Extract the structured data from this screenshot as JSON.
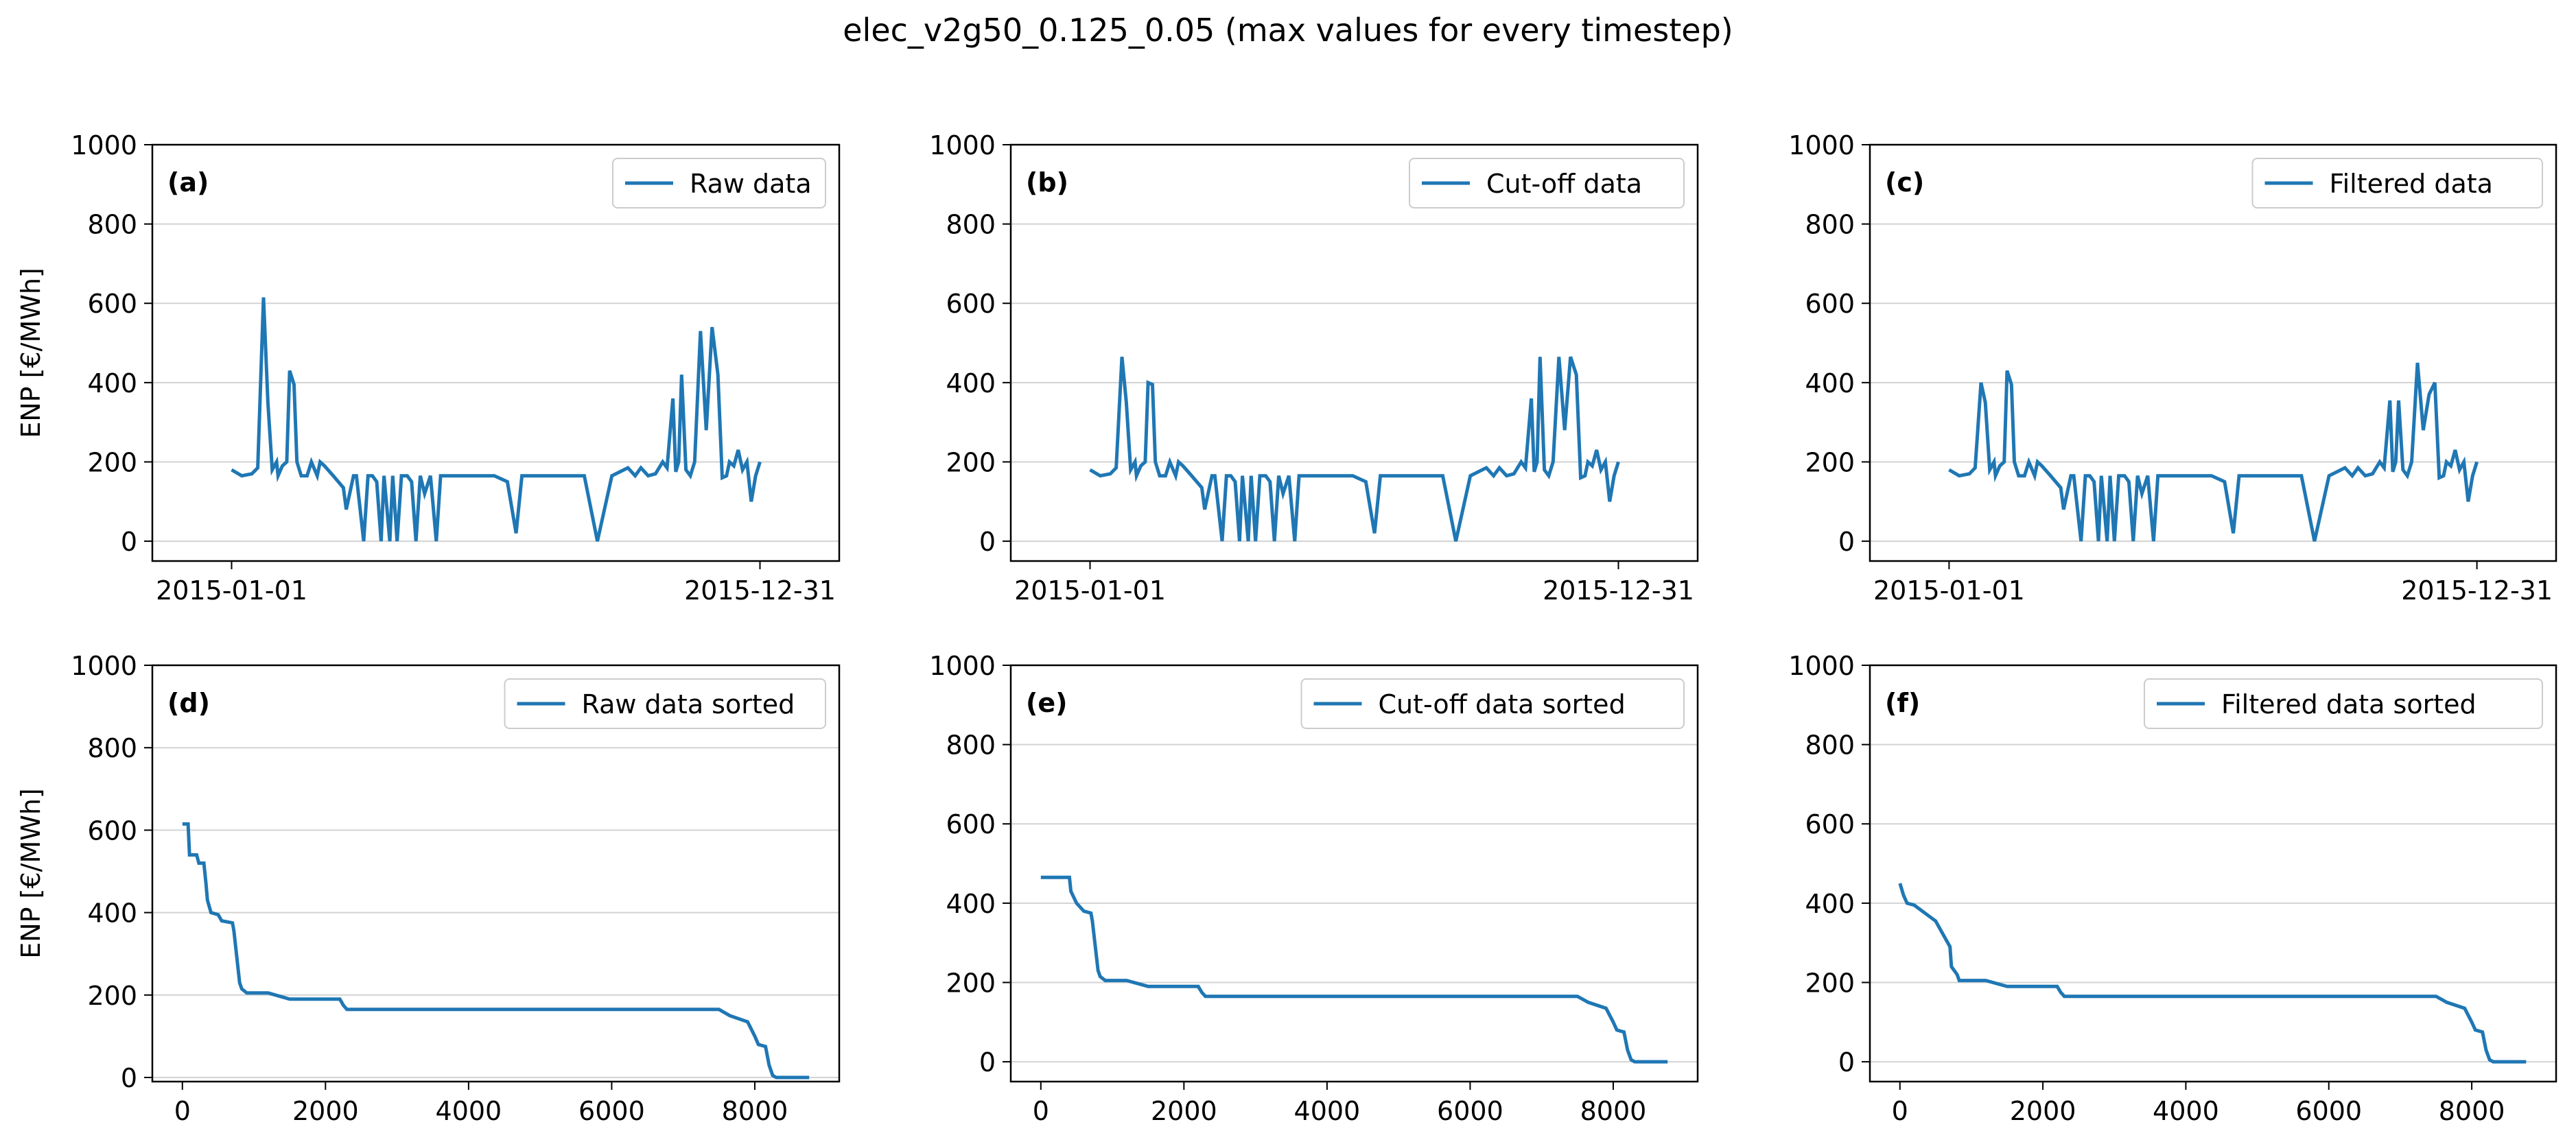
{
  "figure": {
    "suptitle": "elec_v2g50_0.125_0.05 (max values for every timestep)",
    "line_color": "#1f77b4"
  },
  "chart_data": [
    {
      "panel": "(a)",
      "type": "line",
      "legend": "Raw data",
      "legend_placement": "top-right",
      "ylabel": "ENP [€/MWh]",
      "xlabel": "",
      "x_axis": "date",
      "xticks": [
        "2015-01-01",
        "2015-12-31"
      ],
      "yticks": [
        0,
        200,
        400,
        600,
        800,
        1000
      ],
      "ylim": [
        -50,
        1000
      ],
      "grid": "horizontal",
      "x": [
        "2015-01-01",
        "2015-01-08",
        "2015-01-15",
        "2015-01-19",
        "2015-01-23",
        "2015-01-26",
        "2015-01-29",
        "2015-02-01",
        "2015-02-02",
        "2015-02-05",
        "2015-02-08",
        "2015-02-10",
        "2015-02-13",
        "2015-02-15",
        "2015-02-18",
        "2015-02-22",
        "2015-02-25",
        "2015-03-01",
        "2015-03-03",
        "2015-03-06",
        "2015-03-12",
        "2015-03-19",
        "2015-03-21",
        "2015-03-26",
        "2015-03-28",
        "2015-04-02",
        "2015-04-05",
        "2015-04-08",
        "2015-04-11",
        "2015-04-14",
        "2015-04-16",
        "2015-04-20",
        "2015-04-22",
        "2015-04-25",
        "2015-04-28",
        "2015-05-02",
        "2015-05-05",
        "2015-05-08",
        "2015-05-11",
        "2015-05-14",
        "2015-05-18",
        "2015-05-22",
        "2015-05-25",
        "2015-05-29",
        "2015-06-02",
        "2015-06-10",
        "2015-06-20",
        "2015-07-01",
        "2015-07-10",
        "2015-07-16",
        "2015-07-20",
        "2015-08-01",
        "2015-08-15",
        "2015-09-01",
        "2015-09-10",
        "2015-09-20",
        "2015-10-01",
        "2015-10-06",
        "2015-10-10",
        "2015-10-15",
        "2015-10-20",
        "2015-10-25",
        "2015-10-28",
        "2015-11-01",
        "2015-11-03",
        "2015-11-05",
        "2015-11-07",
        "2015-11-10",
        "2015-11-13",
        "2015-11-16",
        "2015-11-20",
        "2015-11-24",
        "2015-11-28",
        "2015-12-02",
        "2015-12-05",
        "2015-12-08",
        "2015-12-10",
        "2015-12-13",
        "2015-12-16",
        "2015-12-19",
        "2015-12-22",
        "2015-12-25",
        "2015-12-28",
        "2015-12-31"
      ],
      "y": [
        180,
        165,
        170,
        185,
        615,
        350,
        180,
        200,
        165,
        190,
        200,
        430,
        395,
        200,
        165,
        165,
        200,
        165,
        200,
        190,
        165,
        135,
        80,
        165,
        165,
        0,
        165,
        165,
        150,
        0,
        165,
        0,
        165,
        0,
        165,
        165,
        150,
        0,
        165,
        120,
        165,
        0,
        165,
        165,
        165,
        165,
        165,
        165,
        150,
        20,
        165,
        165,
        165,
        165,
        0,
        165,
        185,
        165,
        185,
        165,
        170,
        200,
        185,
        360,
        175,
        200,
        420,
        180,
        165,
        200,
        530,
        280,
        540,
        420,
        160,
        165,
        200,
        190,
        230,
        180,
        200,
        100,
        165,
        200
      ]
    },
    {
      "panel": "(b)",
      "type": "line",
      "legend": "Cut-off data",
      "legend_placement": "top-right",
      "ylabel": "",
      "xlabel": "",
      "x_axis": "date",
      "xticks": [
        "2015-01-01",
        "2015-12-31"
      ],
      "yticks": [
        0,
        200,
        400,
        600,
        800,
        1000
      ],
      "ylim": [
        -50,
        1000
      ],
      "grid": "horizontal",
      "x": [
        "2015-01-01",
        "2015-01-08",
        "2015-01-15",
        "2015-01-19",
        "2015-01-23",
        "2015-01-26",
        "2015-01-29",
        "2015-02-01",
        "2015-02-02",
        "2015-02-05",
        "2015-02-08",
        "2015-02-10",
        "2015-02-13",
        "2015-02-15",
        "2015-02-18",
        "2015-02-22",
        "2015-02-25",
        "2015-03-01",
        "2015-03-03",
        "2015-03-06",
        "2015-03-12",
        "2015-03-19",
        "2015-03-21",
        "2015-03-26",
        "2015-03-28",
        "2015-04-02",
        "2015-04-05",
        "2015-04-08",
        "2015-04-11",
        "2015-04-14",
        "2015-04-16",
        "2015-04-20",
        "2015-04-22",
        "2015-04-25",
        "2015-04-28",
        "2015-05-02",
        "2015-05-05",
        "2015-05-08",
        "2015-05-11",
        "2015-05-14",
        "2015-05-18",
        "2015-05-22",
        "2015-05-25",
        "2015-05-29",
        "2015-06-02",
        "2015-06-10",
        "2015-06-20",
        "2015-07-01",
        "2015-07-10",
        "2015-07-16",
        "2015-07-20",
        "2015-08-01",
        "2015-08-15",
        "2015-09-01",
        "2015-09-10",
        "2015-09-20",
        "2015-10-01",
        "2015-10-06",
        "2015-10-10",
        "2015-10-15",
        "2015-10-20",
        "2015-10-25",
        "2015-10-28",
        "2015-11-01",
        "2015-11-03",
        "2015-11-05",
        "2015-11-07",
        "2015-11-10",
        "2015-11-13",
        "2015-11-16",
        "2015-11-20",
        "2015-11-24",
        "2015-11-28",
        "2015-12-02",
        "2015-12-05",
        "2015-12-08",
        "2015-12-10",
        "2015-12-13",
        "2015-12-16",
        "2015-12-19",
        "2015-12-22",
        "2015-12-25",
        "2015-12-28",
        "2015-12-31"
      ],
      "y": [
        180,
        165,
        170,
        185,
        465,
        350,
        180,
        200,
        165,
        190,
        200,
        400,
        395,
        200,
        165,
        165,
        200,
        165,
        200,
        190,
        165,
        135,
        80,
        165,
        165,
        0,
        165,
        165,
        150,
        0,
        165,
        0,
        165,
        0,
        165,
        165,
        150,
        0,
        165,
        120,
        165,
        0,
        165,
        165,
        165,
        165,
        165,
        165,
        150,
        20,
        165,
        165,
        165,
        165,
        0,
        165,
        185,
        165,
        185,
        165,
        170,
        200,
        185,
        360,
        175,
        200,
        465,
        180,
        165,
        200,
        465,
        280,
        465,
        420,
        160,
        165,
        200,
        190,
        230,
        180,
        200,
        100,
        165,
        200
      ]
    },
    {
      "panel": "(c)",
      "type": "line",
      "legend": "Filtered data",
      "legend_placement": "top-right",
      "ylabel": "",
      "xlabel": "",
      "x_axis": "date",
      "xticks": [
        "2015-01-01",
        "2015-12-31"
      ],
      "yticks": [
        0,
        200,
        400,
        600,
        800,
        1000
      ],
      "ylim": [
        -50,
        1000
      ],
      "grid": "horizontal",
      "x": [
        "2015-01-01",
        "2015-01-08",
        "2015-01-15",
        "2015-01-19",
        "2015-01-23",
        "2015-01-26",
        "2015-01-29",
        "2015-02-01",
        "2015-02-02",
        "2015-02-05",
        "2015-02-08",
        "2015-02-10",
        "2015-02-13",
        "2015-02-15",
        "2015-02-18",
        "2015-02-22",
        "2015-02-25",
        "2015-03-01",
        "2015-03-03",
        "2015-03-06",
        "2015-03-12",
        "2015-03-19",
        "2015-03-21",
        "2015-03-26",
        "2015-03-28",
        "2015-04-02",
        "2015-04-05",
        "2015-04-08",
        "2015-04-11",
        "2015-04-14",
        "2015-04-16",
        "2015-04-20",
        "2015-04-22",
        "2015-04-25",
        "2015-04-28",
        "2015-05-02",
        "2015-05-05",
        "2015-05-08",
        "2015-05-11",
        "2015-05-14",
        "2015-05-18",
        "2015-05-22",
        "2015-05-25",
        "2015-05-29",
        "2015-06-02",
        "2015-06-10",
        "2015-06-20",
        "2015-07-01",
        "2015-07-10",
        "2015-07-16",
        "2015-07-20",
        "2015-08-01",
        "2015-08-15",
        "2015-09-01",
        "2015-09-10",
        "2015-09-20",
        "2015-10-01",
        "2015-10-06",
        "2015-10-10",
        "2015-10-15",
        "2015-10-20",
        "2015-10-25",
        "2015-10-28",
        "2015-11-01",
        "2015-11-03",
        "2015-11-05",
        "2015-11-07",
        "2015-11-10",
        "2015-11-13",
        "2015-11-16",
        "2015-11-20",
        "2015-11-24",
        "2015-11-28",
        "2015-12-02",
        "2015-12-05",
        "2015-12-08",
        "2015-12-10",
        "2015-12-13",
        "2015-12-16",
        "2015-12-19",
        "2015-12-22",
        "2015-12-25",
        "2015-12-28",
        "2015-12-31"
      ],
      "y": [
        180,
        165,
        170,
        185,
        400,
        350,
        180,
        200,
        165,
        190,
        200,
        430,
        395,
        200,
        165,
        165,
        200,
        165,
        200,
        190,
        165,
        135,
        80,
        165,
        165,
        0,
        165,
        165,
        150,
        0,
        165,
        0,
        165,
        0,
        165,
        165,
        150,
        0,
        165,
        120,
        165,
        0,
        165,
        165,
        165,
        165,
        165,
        165,
        150,
        20,
        165,
        165,
        165,
        165,
        0,
        165,
        185,
        165,
        185,
        165,
        170,
        200,
        185,
        355,
        175,
        200,
        355,
        180,
        165,
        200,
        450,
        280,
        370,
        400,
        160,
        165,
        200,
        190,
        230,
        180,
        200,
        100,
        165,
        200
      ]
    },
    {
      "panel": "(d)",
      "type": "line",
      "legend": "Raw data sorted",
      "legend_placement": "top-right",
      "ylabel": "ENP [€/MWh]",
      "xlabel": "",
      "xticks": [
        0,
        2000,
        4000,
        6000,
        8000
      ],
      "yticks": [
        0,
        200,
        400,
        600,
        800,
        1000
      ],
      "xlim": [
        -420,
        9180
      ],
      "ylim": [
        -10,
        1000
      ],
      "grid": "horizontal",
      "x": [
        0,
        80,
        100,
        200,
        230,
        300,
        330,
        350,
        400,
        500,
        550,
        700,
        720,
        800,
        830,
        900,
        1200,
        1500,
        1600,
        2200,
        2250,
        2300,
        3000,
        7500,
        7650,
        7900,
        8000,
        8050,
        8150,
        8200,
        8250,
        8300,
        8700,
        8760
      ],
      "y": [
        615,
        615,
        540,
        540,
        520,
        520,
        470,
        430,
        400,
        395,
        380,
        375,
        355,
        230,
        215,
        205,
        205,
        190,
        190,
        190,
        175,
        165,
        165,
        165,
        150,
        135,
        100,
        80,
        75,
        30,
        5,
        0,
        0,
        0
      ]
    },
    {
      "panel": "(e)",
      "type": "line",
      "legend": "Cut-off data sorted",
      "legend_placement": "top-right",
      "ylabel": "",
      "xlabel": "",
      "xticks": [
        0,
        2000,
        4000,
        6000,
        8000
      ],
      "yticks": [
        0,
        200,
        400,
        600,
        800,
        1000
      ],
      "xlim": [
        -420,
        9180
      ],
      "ylim": [
        -50,
        1000
      ],
      "grid": "horizontal",
      "x": [
        0,
        400,
        420,
        500,
        600,
        700,
        720,
        800,
        830,
        900,
        1200,
        1500,
        2200,
        2250,
        2300,
        3000,
        7500,
        7650,
        7900,
        8000,
        8050,
        8150,
        8200,
        8250,
        8300,
        8700,
        8760
      ],
      "y": [
        465,
        465,
        430,
        400,
        380,
        375,
        355,
        230,
        215,
        205,
        205,
        190,
        190,
        175,
        165,
        165,
        165,
        150,
        135,
        100,
        80,
        75,
        30,
        5,
        0,
        0,
        0
      ]
    },
    {
      "panel": "(f)",
      "type": "line",
      "legend": "Filtered data sorted",
      "legend_placement": "top-right",
      "ylabel": "",
      "xlabel": "",
      "xticks": [
        0,
        2000,
        4000,
        6000,
        8000
      ],
      "yticks": [
        0,
        200,
        400,
        600,
        800,
        1000
      ],
      "xlim": [
        -420,
        9180
      ],
      "ylim": [
        -50,
        1000
      ],
      "grid": "horizontal",
      "x": [
        0,
        50,
        100,
        200,
        500,
        700,
        720,
        800,
        830,
        900,
        1200,
        1500,
        2200,
        2250,
        2300,
        3000,
        7500,
        7650,
        7900,
        8000,
        8050,
        8150,
        8200,
        8250,
        8300,
        8700,
        8760
      ],
      "y": [
        450,
        420,
        400,
        395,
        355,
        290,
        240,
        220,
        205,
        205,
        205,
        190,
        190,
        175,
        165,
        165,
        165,
        150,
        135,
        100,
        80,
        75,
        30,
        5,
        0,
        0,
        0
      ]
    }
  ]
}
